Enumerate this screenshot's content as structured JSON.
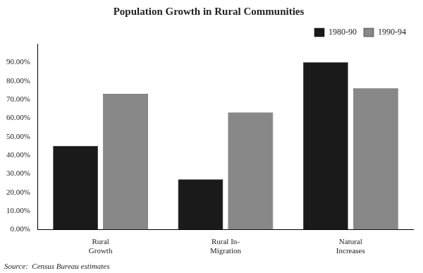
{
  "chart_data": {
    "type": "bar",
    "title": "Population Growth in Rural Communities",
    "categories": [
      "Rural\nGrowth",
      "Rural In-\nMigration",
      "Natural\nIncreases"
    ],
    "series": [
      {
        "name": "1980-90",
        "color": "#1a1a1a",
        "values": [
          0.45,
          0.27,
          0.9
        ]
      },
      {
        "name": "1990-94",
        "color": "#888888",
        "values": [
          0.73,
          0.63,
          0.76
        ]
      }
    ],
    "ylim": [
      0,
      1.0
    ],
    "yticks": [
      {
        "value": 0.0,
        "label": "0.00%"
      },
      {
        "value": 0.1,
        "label": "10.00%"
      },
      {
        "value": 0.2,
        "label": "20.00%"
      },
      {
        "value": 0.3,
        "label": "30.00%"
      },
      {
        "value": 0.4,
        "label": "40.00%"
      },
      {
        "value": 0.5,
        "label": "50.00%"
      },
      {
        "value": 0.6,
        "label": "60.00%"
      },
      {
        "value": 0.7,
        "label": "70.00%"
      },
      {
        "value": 0.8,
        "label": "80.00%"
      },
      {
        "value": 0.9,
        "label": "90.00%"
      }
    ],
    "annotations": [
      "Source:  Census Bureau estimates"
    ],
    "legend": "upper right",
    "grid": false
  }
}
